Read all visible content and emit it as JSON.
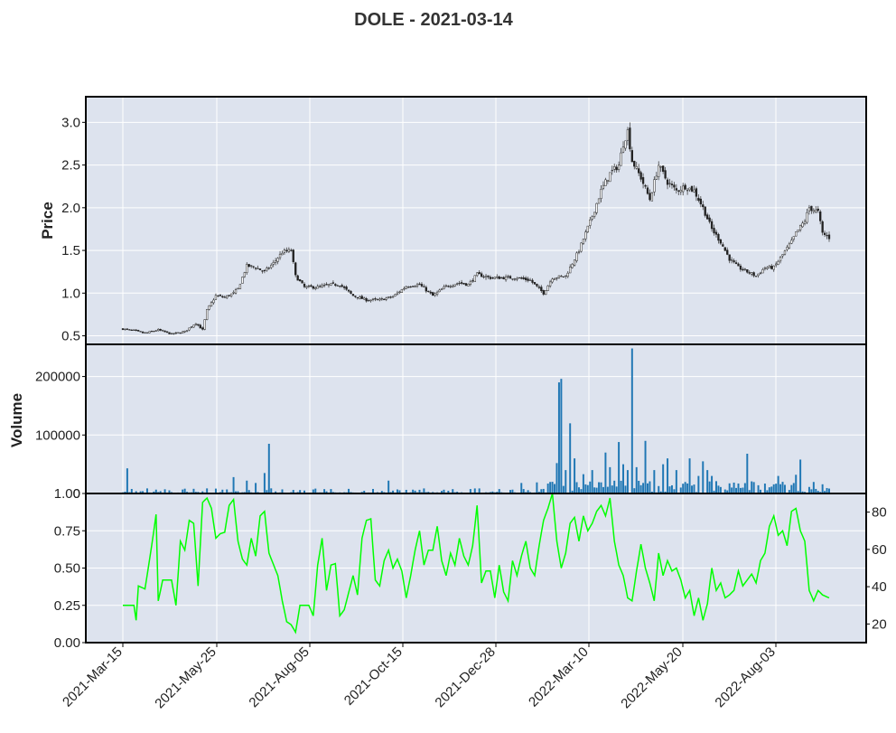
{
  "chart_data": {
    "type": "candlestick",
    "title": "DOLE - 2021-03-14",
    "x_tick_labels": [
      "2021-Mar-15",
      "2021-May-25",
      "2021-Aug-05",
      "2021-Oct-15",
      "2021-Dec-28",
      "2022-Mar-10",
      "2022-May-20",
      "2022-Aug-03"
    ],
    "panels": {
      "price": {
        "ylabel": "Price",
        "ylim": [
          0.4,
          3.3
        ],
        "yticks": [
          "0.5",
          "1.0",
          "1.5",
          "2.0",
          "2.5",
          "3.0"
        ],
        "close_anchors": [
          [
            0,
            0.58
          ],
          [
            5,
            0.56
          ],
          [
            10,
            0.53
          ],
          [
            16,
            0.57
          ],
          [
            22,
            0.52
          ],
          [
            28,
            0.55
          ],
          [
            33,
            0.65
          ],
          [
            36,
            0.57
          ],
          [
            38,
            0.8
          ],
          [
            42,
            0.97
          ],
          [
            46,
            0.95
          ],
          [
            50,
            1.0
          ],
          [
            52,
            1.05
          ],
          [
            56,
            1.32
          ],
          [
            60,
            1.3
          ],
          [
            64,
            1.25
          ],
          [
            68,
            1.35
          ],
          [
            72,
            1.48
          ],
          [
            76,
            1.5
          ],
          [
            78,
            1.2
          ],
          [
            82,
            1.07
          ],
          [
            88,
            1.07
          ],
          [
            94,
            1.1
          ],
          [
            98,
            1.1
          ],
          [
            104,
            0.97
          ],
          [
            110,
            0.92
          ],
          [
            116,
            0.92
          ],
          [
            122,
            0.96
          ],
          [
            128,
            1.08
          ],
          [
            134,
            1.1
          ],
          [
            140,
            0.97
          ],
          [
            146,
            1.08
          ],
          [
            152,
            1.12
          ],
          [
            156,
            1.1
          ],
          [
            160,
            1.22
          ],
          [
            166,
            1.18
          ],
          [
            172,
            1.18
          ],
          [
            178,
            1.18
          ],
          [
            184,
            1.15
          ],
          [
            188,
            1.05
          ],
          [
            190,
            1.0
          ],
          [
            194,
            1.18
          ],
          [
            200,
            1.2
          ],
          [
            206,
            1.5
          ],
          [
            212,
            1.9
          ],
          [
            216,
            2.2
          ],
          [
            220,
            2.4
          ],
          [
            224,
            2.5
          ],
          [
            226,
            2.75
          ],
          [
            228,
            2.9
          ],
          [
            230,
            2.55
          ],
          [
            234,
            2.35
          ],
          [
            238,
            2.1
          ],
          [
            242,
            2.5
          ],
          [
            246,
            2.3
          ],
          [
            250,
            2.2
          ],
          [
            254,
            2.25
          ],
          [
            258,
            2.2
          ],
          [
            262,
            2.0
          ],
          [
            266,
            1.75
          ],
          [
            270,
            1.6
          ],
          [
            274,
            1.4
          ],
          [
            278,
            1.3
          ],
          [
            282,
            1.25
          ],
          [
            286,
            1.2
          ],
          [
            290,
            1.3
          ],
          [
            294,
            1.3
          ],
          [
            298,
            1.45
          ],
          [
            302,
            1.6
          ],
          [
            304,
            1.7
          ],
          [
            308,
            1.85
          ],
          [
            310,
            2.0
          ],
          [
            314,
            1.95
          ],
          [
            316,
            1.7
          ],
          [
            319,
            1.65
          ]
        ]
      },
      "volume": {
        "ylabel": "Volume",
        "ylim": [
          0,
          255000
        ],
        "yticks": [
          "0",
          "100000",
          "200000"
        ],
        "spikes": [
          [
            2,
            43000
          ],
          [
            50,
            28000
          ],
          [
            56,
            22000
          ],
          [
            60,
            18000
          ],
          [
            64,
            35000
          ],
          [
            66,
            85000
          ],
          [
            120,
            22000
          ],
          [
            180,
            18000
          ],
          [
            187,
            19000
          ],
          [
            194,
            20000
          ],
          [
            196,
            52000
          ],
          [
            197,
            190000
          ],
          [
            198,
            196000
          ],
          [
            200,
            40000
          ],
          [
            202,
            120000
          ],
          [
            204,
            60000
          ],
          [
            208,
            33000
          ],
          [
            212,
            40000
          ],
          [
            218,
            70000
          ],
          [
            220,
            45000
          ],
          [
            224,
            88000
          ],
          [
            226,
            50000
          ],
          [
            228,
            40000
          ],
          [
            230,
            248000
          ],
          [
            232,
            45000
          ],
          [
            236,
            90000
          ],
          [
            240,
            40000
          ],
          [
            244,
            50000
          ],
          [
            246,
            60000
          ],
          [
            250,
            40000
          ],
          [
            256,
            60000
          ],
          [
            260,
            30000
          ],
          [
            262,
            55000
          ],
          [
            264,
            40000
          ],
          [
            266,
            30000
          ],
          [
            282,
            68000
          ],
          [
            296,
            30000
          ],
          [
            304,
            32000
          ],
          [
            306,
            58000
          ]
        ]
      },
      "oscillator": {
        "ylim_left": [
          0.0,
          1.0
        ],
        "yticks_left": [
          "0.00",
          "0.25",
          "0.50",
          "0.75",
          "1.00"
        ],
        "ylim_right": [
          10,
          90
        ],
        "yticks_right": [
          "20",
          "40",
          "60",
          "80"
        ],
        "line_color": "#00ff00",
        "anchors": [
          [
            0,
            0.25
          ],
          [
            5,
            0.25
          ],
          [
            6,
            0.15
          ],
          [
            7,
            0.38
          ],
          [
            10,
            0.36
          ],
          [
            12,
            0.55
          ],
          [
            14,
            0.75
          ],
          [
            15,
            0.86
          ],
          [
            16,
            0.28
          ],
          [
            18,
            0.42
          ],
          [
            22,
            0.42
          ],
          [
            24,
            0.25
          ],
          [
            26,
            0.68
          ],
          [
            28,
            0.62
          ],
          [
            30,
            0.82
          ],
          [
            32,
            0.8
          ],
          [
            34,
            0.38
          ],
          [
            36,
            0.94
          ],
          [
            38,
            0.97
          ],
          [
            40,
            0.9
          ],
          [
            42,
            0.7
          ],
          [
            44,
            0.73
          ],
          [
            46,
            0.74
          ],
          [
            48,
            0.92
          ],
          [
            50,
            0.96
          ],
          [
            52,
            0.68
          ],
          [
            54,
            0.56
          ],
          [
            56,
            0.52
          ],
          [
            58,
            0.7
          ],
          [
            60,
            0.58
          ],
          [
            62,
            0.85
          ],
          [
            64,
            0.88
          ],
          [
            66,
            0.6
          ],
          [
            70,
            0.45
          ],
          [
            72,
            0.28
          ],
          [
            74,
            0.14
          ],
          [
            76,
            0.12
          ],
          [
            78,
            0.07
          ],
          [
            80,
            0.25
          ],
          [
            84,
            0.25
          ],
          [
            86,
            0.18
          ],
          [
            88,
            0.52
          ],
          [
            90,
            0.7
          ],
          [
            92,
            0.35
          ],
          [
            94,
            0.52
          ],
          [
            96,
            0.53
          ],
          [
            98,
            0.18
          ],
          [
            100,
            0.22
          ],
          [
            104,
            0.45
          ],
          [
            106,
            0.32
          ],
          [
            108,
            0.7
          ],
          [
            110,
            0.82
          ],
          [
            112,
            0.83
          ],
          [
            114,
            0.42
          ],
          [
            116,
            0.38
          ],
          [
            118,
            0.55
          ],
          [
            120,
            0.62
          ],
          [
            122,
            0.5
          ],
          [
            124,
            0.56
          ],
          [
            126,
            0.48
          ],
          [
            128,
            0.3
          ],
          [
            130,
            0.45
          ],
          [
            132,
            0.62
          ],
          [
            134,
            0.75
          ],
          [
            136,
            0.52
          ],
          [
            138,
            0.62
          ],
          [
            140,
            0.62
          ],
          [
            142,
            0.78
          ],
          [
            144,
            0.55
          ],
          [
            146,
            0.45
          ],
          [
            148,
            0.6
          ],
          [
            150,
            0.52
          ],
          [
            152,
            0.7
          ],
          [
            154,
            0.58
          ],
          [
            156,
            0.52
          ],
          [
            158,
            0.65
          ],
          [
            160,
            0.92
          ],
          [
            162,
            0.4
          ],
          [
            164,
            0.48
          ],
          [
            166,
            0.48
          ],
          [
            168,
            0.3
          ],
          [
            170,
            0.52
          ],
          [
            172,
            0.34
          ],
          [
            174,
            0.28
          ],
          [
            176,
            0.55
          ],
          [
            178,
            0.45
          ],
          [
            180,
            0.58
          ],
          [
            182,
            0.68
          ],
          [
            184,
            0.5
          ],
          [
            186,
            0.45
          ],
          [
            188,
            0.65
          ],
          [
            190,
            0.82
          ],
          [
            192,
            0.9
          ],
          [
            194,
            1.0
          ],
          [
            196,
            0.68
          ],
          [
            198,
            0.5
          ],
          [
            200,
            0.6
          ],
          [
            202,
            0.8
          ],
          [
            204,
            0.84
          ],
          [
            206,
            0.68
          ],
          [
            208,
            0.85
          ],
          [
            210,
            0.75
          ],
          [
            212,
            0.8
          ],
          [
            214,
            0.88
          ],
          [
            216,
            0.92
          ],
          [
            218,
            0.85
          ],
          [
            220,
            0.97
          ],
          [
            222,
            0.68
          ],
          [
            224,
            0.52
          ],
          [
            226,
            0.45
          ],
          [
            228,
            0.3
          ],
          [
            230,
            0.28
          ],
          [
            232,
            0.48
          ],
          [
            234,
            0.66
          ],
          [
            236,
            0.5
          ],
          [
            238,
            0.4
          ],
          [
            240,
            0.28
          ],
          [
            242,
            0.6
          ],
          [
            244,
            0.45
          ],
          [
            246,
            0.55
          ],
          [
            248,
            0.48
          ],
          [
            250,
            0.5
          ],
          [
            252,
            0.42
          ],
          [
            254,
            0.3
          ],
          [
            256,
            0.35
          ],
          [
            258,
            0.18
          ],
          [
            260,
            0.3
          ],
          [
            262,
            0.15
          ],
          [
            264,
            0.26
          ],
          [
            266,
            0.5
          ],
          [
            268,
            0.35
          ],
          [
            270,
            0.4
          ],
          [
            272,
            0.3
          ],
          [
            274,
            0.32
          ],
          [
            276,
            0.35
          ],
          [
            278,
            0.48
          ],
          [
            280,
            0.38
          ],
          [
            282,
            0.42
          ],
          [
            284,
            0.46
          ],
          [
            286,
            0.4
          ],
          [
            288,
            0.55
          ],
          [
            290,
            0.6
          ],
          [
            292,
            0.78
          ],
          [
            294,
            0.85
          ],
          [
            296,
            0.72
          ],
          [
            298,
            0.75
          ],
          [
            300,
            0.65
          ],
          [
            302,
            0.88
          ],
          [
            304,
            0.9
          ],
          [
            306,
            0.75
          ],
          [
            308,
            0.68
          ],
          [
            310,
            0.35
          ],
          [
            312,
            0.28
          ],
          [
            314,
            0.35
          ],
          [
            316,
            0.32
          ],
          [
            319,
            0.3
          ]
        ]
      }
    }
  }
}
